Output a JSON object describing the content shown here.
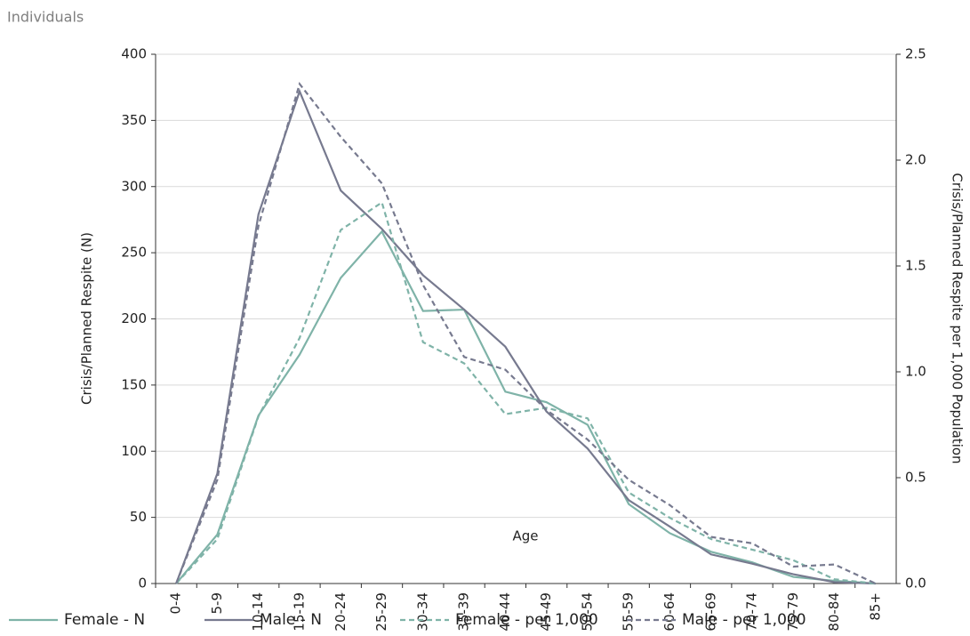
{
  "chart_data": {
    "type": "line",
    "title": "Individuals",
    "x_label": "Age",
    "y_label": "Crisis/Planned Respite (N)",
    "y2_label": "Crisis/Planned Respite per 1,000 Population",
    "categories": [
      "0-4",
      "5-9",
      "10-14",
      "15-19",
      "20-24",
      "25-29",
      "30-34",
      "35-39",
      "40-44",
      "45-49",
      "50-54",
      "55-59",
      "60-64",
      "65-69",
      "70-74",
      "75-79",
      "80-84",
      "85+"
    ],
    "ylim": [
      0,
      400
    ],
    "yticks": [
      0,
      50,
      100,
      150,
      200,
      250,
      300,
      350,
      400
    ],
    "y2lim": [
      0,
      2.5
    ],
    "y2ticks": [
      {
        "value": 0,
        "label": "0.0"
      },
      0.5,
      {
        "value": 1,
        "label": "1.0"
      },
      1.5,
      {
        "value": 2,
        "label": "2.0"
      },
      2.5
    ],
    "grid": true,
    "legend": "bottom",
    "series": [
      {
        "name": "Female - N",
        "color": "#7fb3a8",
        "line_style": "solid",
        "values": [
          0,
          37,
          127,
          173,
          231,
          266,
          206,
          207,
          145,
          137,
          120,
          60,
          38,
          24,
          16,
          5,
          2,
          0
        ]
      },
      {
        "name": "Male - N",
        "color": "#777a8f",
        "line_style": "solid",
        "values": [
          0,
          83,
          279,
          372,
          297,
          268,
          233,
          207,
          179,
          130,
          102,
          63,
          43,
          22,
          15,
          7,
          1,
          0
        ]
      },
      {
        "name": "Female - per 1,000",
        "color": "#7fb3a8",
        "line_style": "dashed",
        "axis": "y2",
        "values": [
          0,
          0.21,
          0.79,
          1.16,
          1.67,
          1.8,
          1.14,
          1.04,
          0.8,
          0.83,
          0.78,
          0.43,
          0.31,
          0.21,
          0.16,
          0.11,
          0.02,
          0
        ]
      },
      {
        "name": "Male - per 1,000",
        "color": "#777a8f",
        "line_style": "dashed",
        "axis": "y2",
        "values": [
          0,
          0.49,
          1.69,
          2.36,
          2.11,
          1.89,
          1.41,
          1.07,
          1.01,
          0.82,
          0.68,
          0.49,
          0.37,
          0.22,
          0.19,
          0.08,
          0.09,
          0
        ]
      }
    ]
  }
}
